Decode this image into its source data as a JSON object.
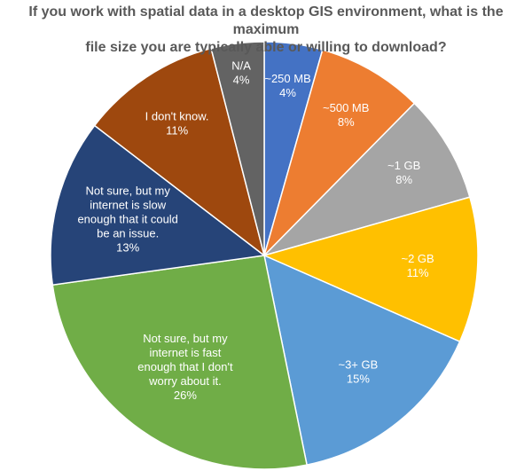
{
  "chart_data": {
    "type": "pie",
    "title_lines": [
      "If you work with spatial data in a desktop GIS environment, what is the maximum",
      "file size you are typically able or willing to download?"
    ],
    "start_angle_deg": 0,
    "direction": "clockwise",
    "slices": [
      {
        "label_lines": [
          "~250 MB"
        ],
        "percent_label": "4%",
        "value": 4.4,
        "color": "#4472C4"
      },
      {
        "label_lines": [
          "~500 MB"
        ],
        "percent_label": "8%",
        "value": 8.0,
        "color": "#ED7D31"
      },
      {
        "label_lines": [
          "~1 GB"
        ],
        "percent_label": "8%",
        "value": 8.2,
        "color": "#A5A5A5"
      },
      {
        "label_lines": [
          "~2 GB"
        ],
        "percent_label": "11%",
        "value": 11.0,
        "color": "#FFC000"
      },
      {
        "label_lines": [
          "~3+ GB"
        ],
        "percent_label": "15%",
        "value": 15.2,
        "color": "#5B9BD5"
      },
      {
        "label_lines": [
          "Not sure, but my",
          "internet is fast",
          "enough that I don't",
          "worry about it."
        ],
        "percent_label": "26%",
        "value": 26.0,
        "color": "#70AD47"
      },
      {
        "label_lines": [
          "Not sure, but my",
          "internet is slow",
          "enough that it could",
          "be an issue."
        ],
        "percent_label": "13%",
        "value": 12.6,
        "color": "#264478"
      },
      {
        "label_lines": [
          "I don't know."
        ],
        "percent_label": "11%",
        "value": 10.6,
        "color": "#9E480E"
      },
      {
        "label_lines": [
          "N/A"
        ],
        "percent_label": "4%",
        "value": 4.0,
        "color": "#636363"
      }
    ]
  }
}
